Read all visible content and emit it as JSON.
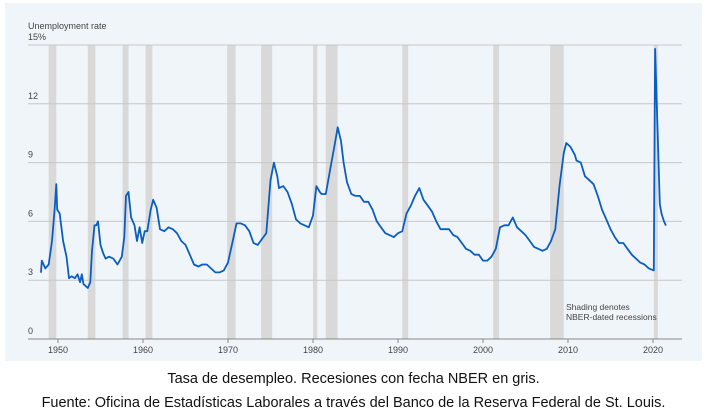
{
  "chart_data": {
    "type": "line",
    "ylabel": "Unemployment rate",
    "y_ticks": [
      "0",
      "3",
      "6",
      "9",
      "12",
      "15%"
    ],
    "y_tick_values": [
      0,
      3,
      6,
      9,
      12,
      15
    ],
    "ylim": [
      0,
      15
    ],
    "x_ticks": [
      "1950",
      "1960",
      "1970",
      "1980",
      "1990",
      "2000",
      "2010",
      "2020"
    ],
    "x_tick_values": [
      1950,
      1960,
      1970,
      1980,
      1990,
      2000,
      2010,
      2020
    ],
    "xlim": [
      1946.5,
      2023
    ],
    "grid": true,
    "line_color": "#0b5ec0",
    "recession_color": "#d9d9d9",
    "annotation": [
      "Shading denotes",
      "NBER-dated recessions"
    ],
    "recessions": [
      [
        1948.9,
        1949.8
      ],
      [
        1953.5,
        1954.4
      ],
      [
        1957.6,
        1958.3
      ],
      [
        1960.3,
        1961.1
      ],
      [
        1969.9,
        1970.9
      ],
      [
        1973.9,
        1975.2
      ],
      [
        1980.0,
        1980.5
      ],
      [
        1981.5,
        1982.9
      ],
      [
        1990.5,
        1991.2
      ],
      [
        2001.2,
        2001.9
      ],
      [
        2007.9,
        2009.5
      ],
      [
        2020.1,
        2020.3
      ]
    ],
    "series": [
      {
        "name": "Unemployment rate",
        "x": [
          1948.0,
          1948.1,
          1948.5,
          1948.9,
          1949.3,
          1949.6,
          1949.8,
          1949.9,
          1950.2,
          1950.6,
          1951.0,
          1951.3,
          1951.6,
          1952.0,
          1952.3,
          1952.6,
          1952.8,
          1953.0,
          1953.5,
          1953.8,
          1954.0,
          1954.3,
          1954.5,
          1954.7,
          1955.0,
          1955.3,
          1955.6,
          1956.0,
          1956.5,
          1957.0,
          1957.5,
          1957.8,
          1958.0,
          1958.3,
          1958.6,
          1959.0,
          1959.3,
          1959.6,
          1959.9,
          1960.2,
          1960.5,
          1960.9,
          1961.2,
          1961.6,
          1962,
          1962.5,
          1963,
          1963.5,
          1964,
          1964.5,
          1965,
          1965.5,
          1966,
          1966.5,
          1967,
          1967.5,
          1968,
          1968.5,
          1969,
          1969.5,
          1970,
          1970.5,
          1971,
          1971.5,
          1972,
          1972.5,
          1973,
          1973.5,
          1974,
          1974.5,
          1975,
          1975.4,
          1975.8,
          1976,
          1976.5,
          1977,
          1977.5,
          1978,
          1978.5,
          1979,
          1979.5,
          1980,
          1980.4,
          1980.8,
          1981,
          1981.5,
          1982,
          1982.5,
          1982.9,
          1983.3,
          1983.6,
          1984,
          1984.5,
          1985,
          1985.5,
          1986,
          1986.5,
          1987,
          1987.5,
          1988,
          1988.5,
          1989,
          1989.5,
          1990,
          1990.5,
          1991,
          1991.5,
          1992,
          1992.5,
          1993,
          1993.5,
          1994,
          1994.5,
          1995,
          1995.5,
          1996,
          1996.5,
          1997,
          1997.5,
          1998,
          1998.5,
          1999,
          1999.5,
          2000,
          2000.5,
          2001,
          2001.5,
          2002,
          2002.5,
          2003,
          2003.5,
          2004,
          2004.5,
          2005,
          2005.5,
          2006,
          2006.5,
          2007,
          2007.5,
          2008,
          2008.5,
          2009,
          2009.5,
          2009.8,
          2010.3,
          2010.8,
          2011,
          2011.5,
          2012,
          2012.5,
          2013,
          2013.5,
          2014,
          2014.5,
          2015,
          2015.5,
          2016,
          2016.5,
          2017,
          2017.5,
          2018,
          2018.5,
          2019,
          2019.5,
          2020.1,
          2020.25,
          2020.5,
          2020.8,
          2021.0,
          2021.3,
          2021.5
        ],
        "values": [
          3.4,
          4.0,
          3.6,
          3.8,
          5.0,
          6.6,
          7.9,
          6.6,
          6.4,
          5.0,
          4.2,
          3.1,
          3.2,
          3.1,
          3.3,
          2.9,
          3.3,
          2.8,
          2.6,
          2.9,
          4.5,
          5.8,
          5.8,
          6.0,
          4.8,
          4.4,
          4.1,
          4.2,
          4.1,
          3.8,
          4.2,
          5.2,
          7.3,
          7.5,
          6.2,
          5.8,
          5.0,
          5.7,
          4.9,
          5.5,
          5.5,
          6.6,
          7.1,
          6.7,
          5.6,
          5.5,
          5.7,
          5.6,
          5.4,
          5.0,
          4.8,
          4.3,
          3.8,
          3.7,
          3.8,
          3.8,
          3.6,
          3.4,
          3.4,
          3.5,
          3.9,
          4.9,
          5.9,
          5.9,
          5.8,
          5.5,
          4.9,
          4.8,
          5.1,
          5.4,
          8.1,
          9.0,
          8.3,
          7.7,
          7.8,
          7.5,
          6.9,
          6.1,
          5.9,
          5.8,
          5.7,
          6.3,
          7.8,
          7.5,
          7.4,
          7.4,
          8.6,
          9.8,
          10.8,
          10.1,
          9.0,
          8.0,
          7.4,
          7.3,
          7.3,
          7.0,
          7.0,
          6.6,
          6.0,
          5.7,
          5.4,
          5.3,
          5.2,
          5.4,
          5.5,
          6.4,
          6.8,
          7.3,
          7.7,
          7.1,
          6.8,
          6.5,
          6.0,
          5.6,
          5.6,
          5.6,
          5.3,
          5.2,
          4.9,
          4.6,
          4.5,
          4.3,
          4.3,
          4.0,
          4.0,
          4.2,
          4.6,
          5.7,
          5.8,
          5.8,
          6.2,
          5.7,
          5.5,
          5.3,
          5.0,
          4.7,
          4.6,
          4.5,
          4.6,
          5.0,
          5.6,
          7.8,
          9.5,
          10.0,
          9.8,
          9.4,
          9.1,
          9.0,
          8.3,
          8.1,
          7.9,
          7.3,
          6.6,
          6.1,
          5.6,
          5.2,
          4.9,
          4.9,
          4.6,
          4.3,
          4.1,
          3.9,
          3.8,
          3.6,
          3.5,
          14.8,
          11.1,
          6.9,
          6.4,
          6.0,
          5.8
        ]
      }
    ]
  },
  "caption": {
    "line1": "Tasa de desempleo. Recesiones con fecha NBER en gris.",
    "line2": "Fuente: Oficina de Estadísticas Laborales a través del Banco de la Reserva Federal de St. Louis."
  }
}
